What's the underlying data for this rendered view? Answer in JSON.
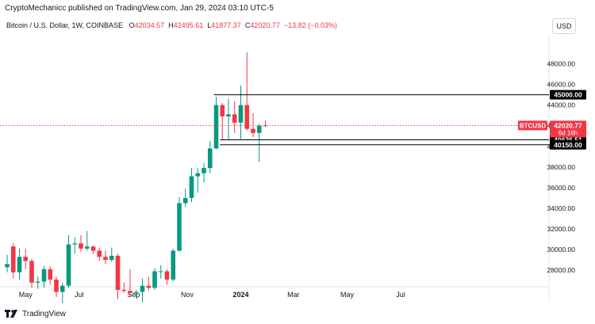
{
  "header": {
    "published": "CryptoMechanicc published on TradingView.com, Jan 29, 2024 03:10 UTC-5",
    "symbol": "Bitcoin / U.S. Dollar, 1W, COINBASE",
    "ohlc": [
      {
        "key": "O",
        "value": "42034.57"
      },
      {
        "key": "H",
        "value": "42495.61"
      },
      {
        "key": "L",
        "value": "41877.37"
      },
      {
        "key": "C",
        "value": "42020.77"
      }
    ],
    "change": "−13.82 (−0.03%)"
  },
  "currency_button": "USD",
  "footer": {
    "brand": "TradingView",
    "logo_icon": "tradingview-logo-icon"
  },
  "chart_data": {
    "type": "candlestick",
    "interval": "1W",
    "colors": {
      "up": "#089981",
      "down": "#f23645",
      "level_line": "#000000",
      "last_price_line": "#f23645"
    },
    "x_ticks": [
      "May",
      "Jul",
      "Sep",
      "Nov",
      "2024",
      "Mar",
      "May",
      "Jul"
    ],
    "y_ticks": [
      28000,
      30000,
      32000,
      34000,
      36000,
      38000,
      40000,
      42000,
      44000,
      46000,
      48000
    ],
    "y_tick_labels": [
      "28000.00",
      "30000.00",
      "32000.00",
      "34000.00",
      "36000.00",
      "38000.00",
      "40000.00",
      "42000.00",
      "44000.00",
      "46000.00",
      "48000.00"
    ],
    "ylim": [
      26400,
      50800
    ],
    "grid": false,
    "series": [
      {
        "date": "2023-04-10",
        "o": 28300,
        "h": 29500,
        "l": 27800,
        "c": 28600
      },
      {
        "date": "2023-04-17",
        "o": 30300,
        "h": 30600,
        "l": 27200,
        "c": 27800
      },
      {
        "date": "2023-04-24",
        "o": 27800,
        "h": 30100,
        "l": 27100,
        "c": 29300
      },
      {
        "date": "2023-05-01",
        "o": 29300,
        "h": 30100,
        "l": 28100,
        "c": 28900
      },
      {
        "date": "2023-05-08",
        "o": 28900,
        "h": 29100,
        "l": 26300,
        "c": 26800
      },
      {
        "date": "2023-05-15",
        "o": 26800,
        "h": 27400,
        "l": 26200,
        "c": 26900
      },
      {
        "date": "2023-05-22",
        "o": 26900,
        "h": 28400,
        "l": 26300,
        "c": 28100
      },
      {
        "date": "2023-05-29",
        "o": 28100,
        "h": 28400,
        "l": 26600,
        "c": 27100
      },
      {
        "date": "2023-06-05",
        "o": 27100,
        "h": 27400,
        "l": 25400,
        "c": 25900
      },
      {
        "date": "2023-06-12",
        "o": 25900,
        "h": 26800,
        "l": 24800,
        "c": 26500
      },
      {
        "date": "2023-06-19",
        "o": 26500,
        "h": 31400,
        "l": 26300,
        "c": 30500
      },
      {
        "date": "2023-06-26",
        "o": 30500,
        "h": 31200,
        "l": 29600,
        "c": 30600
      },
      {
        "date": "2023-07-03",
        "o": 30600,
        "h": 31400,
        "l": 29800,
        "c": 30100
      },
      {
        "date": "2023-07-10",
        "o": 30100,
        "h": 31800,
        "l": 29900,
        "c": 30300
      },
      {
        "date": "2023-07-17",
        "o": 30300,
        "h": 30400,
        "l": 29600,
        "c": 29900
      },
      {
        "date": "2023-07-24",
        "o": 29900,
        "h": 30200,
        "l": 28900,
        "c": 29300
      },
      {
        "date": "2023-07-31",
        "o": 29300,
        "h": 29900,
        "l": 28600,
        "c": 29000
      },
      {
        "date": "2023-08-07",
        "o": 29000,
        "h": 30200,
        "l": 28800,
        "c": 29400
      },
      {
        "date": "2023-08-14",
        "o": 29400,
        "h": 29600,
        "l": 25200,
        "c": 26100
      },
      {
        "date": "2023-08-21",
        "o": 26100,
        "h": 26800,
        "l": 25800,
        "c": 26000
      },
      {
        "date": "2023-08-28",
        "o": 26000,
        "h": 28100,
        "l": 25400,
        "c": 25800
      },
      {
        "date": "2023-09-04",
        "o": 25800,
        "h": 26100,
        "l": 25300,
        "c": 25900
      },
      {
        "date": "2023-09-11",
        "o": 25900,
        "h": 27200,
        "l": 24900,
        "c": 26500
      },
      {
        "date": "2023-09-18",
        "o": 26500,
        "h": 27400,
        "l": 26000,
        "c": 26300
      },
      {
        "date": "2023-09-25",
        "o": 26300,
        "h": 28200,
        "l": 26100,
        "c": 27900
      },
      {
        "date": "2023-10-02",
        "o": 27900,
        "h": 28500,
        "l": 27200,
        "c": 27900
      },
      {
        "date": "2023-10-09",
        "o": 27900,
        "h": 28100,
        "l": 26600,
        "c": 27100
      },
      {
        "date": "2023-10-16",
        "o": 27100,
        "h": 30100,
        "l": 26900,
        "c": 29900
      },
      {
        "date": "2023-10-23",
        "o": 29900,
        "h": 35100,
        "l": 29800,
        "c": 34500
      },
      {
        "date": "2023-10-30",
        "o": 34500,
        "h": 35900,
        "l": 34100,
        "c": 35000
      },
      {
        "date": "2023-11-06",
        "o": 35000,
        "h": 37900,
        "l": 34600,
        "c": 37100
      },
      {
        "date": "2023-11-13",
        "o": 37100,
        "h": 37900,
        "l": 35500,
        "c": 37400
      },
      {
        "date": "2023-11-20",
        "o": 37400,
        "h": 38400,
        "l": 36500,
        "c": 37900
      },
      {
        "date": "2023-11-27",
        "o": 37900,
        "h": 40500,
        "l": 37400,
        "c": 39800
      },
      {
        "date": "2023-12-04",
        "o": 39800,
        "h": 44800,
        "l": 39700,
        "c": 44000
      },
      {
        "date": "2023-12-11",
        "o": 44000,
        "h": 44200,
        "l": 40600,
        "c": 42900
      },
      {
        "date": "2023-12-18",
        "o": 42900,
        "h": 44600,
        "l": 40600,
        "c": 43100
      },
      {
        "date": "2023-12-25",
        "o": 43100,
        "h": 44400,
        "l": 41300,
        "c": 42300
      },
      {
        "date": "2024-01-01",
        "o": 42300,
        "h": 45900,
        "l": 40700,
        "c": 44000
      },
      {
        "date": "2024-01-08",
        "o": 44000,
        "h": 49100,
        "l": 41500,
        "c": 41700
      },
      {
        "date": "2024-01-15",
        "o": 41700,
        "h": 43200,
        "l": 40900,
        "c": 41300
      },
      {
        "date": "2024-01-22",
        "o": 41300,
        "h": 42200,
        "l": 38500,
        "c": 42000
      },
      {
        "date": "2024-01-29",
        "o": 42034.57,
        "h": 42495.61,
        "l": 41877.37,
        "c": 42020.77
      }
    ],
    "levels": [
      {
        "value": 45000,
        "label": "45000.00",
        "start_date": "2023-12-04"
      },
      {
        "value": 40636.51,
        "label": "40636.51",
        "start_date": "2023-12-11"
      },
      {
        "value": 40150,
        "label": "40150.00",
        "start_date": "2023-12-11"
      }
    ],
    "last_price": {
      "value": 42020.77,
      "symbol_label": "BTCUSD",
      "price_label": "42020.77",
      "countdown": "6d 16h"
    }
  }
}
